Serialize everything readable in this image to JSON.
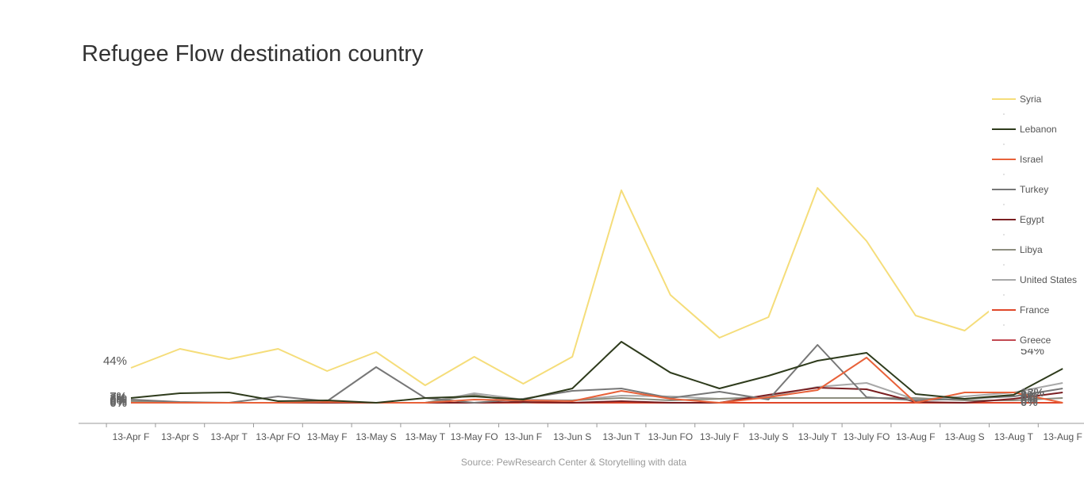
{
  "chart_data": {
    "type": "line",
    "title": "Refugee Flow destination country",
    "source": "Source: PewResearch Center & Storytelling with data",
    "categories": [
      "13-Apr F",
      "13-Apr S",
      "13-Apr T",
      "13-Apr FO",
      "13-May F",
      "13-May S",
      "13-May T",
      "13-May FO",
      "13-Jun F",
      "13-Jun S",
      "13-Jun T",
      "13-Jun FO",
      "13-July F",
      "13-July S",
      "13-July T",
      "13-July FO",
      "13-Aug F",
      "13-Aug S",
      "13-Aug T",
      "13-Aug F"
    ],
    "ylim": [
      0,
      330
    ],
    "grid": false,
    "legend_position": "right",
    "series": [
      {
        "name": "Syria",
        "color": "#F5DD7A",
        "values": [
          44,
          68,
          55,
          68,
          40,
          64,
          22,
          58,
          24,
          58,
          268,
          136,
          82,
          108,
          271,
          204,
          110,
          91,
          140,
          185
        ]
      },
      {
        "name": "Lebanon",
        "color": "#2E3B1C",
        "values": [
          6,
          12,
          13,
          2,
          3,
          0,
          6,
          8,
          4,
          18,
          77,
          38,
          18,
          34,
          53,
          63,
          11,
          5,
          10,
          43
        ]
      },
      {
        "name": "Israel",
        "color": "#E8623A",
        "values": [
          0,
          0,
          0,
          0,
          1,
          0,
          0,
          4,
          3,
          2,
          15,
          5,
          0,
          7,
          16,
          57,
          0,
          13,
          13,
          0
        ]
      },
      {
        "name": "Turkey",
        "color": "#777777",
        "values": [
          4,
          1,
          0,
          8,
          2,
          45,
          6,
          0,
          5,
          15,
          18,
          6,
          14,
          4,
          73,
          7,
          3,
          5,
          8,
          18
        ]
      },
      {
        "name": "Egypt",
        "color": "#7A1F22",
        "values": [
          0,
          0,
          0,
          0,
          0,
          0,
          0,
          0,
          1,
          0,
          2,
          0,
          0,
          10,
          19,
          17,
          1,
          0,
          5,
          13
        ]
      },
      {
        "name": "Libya",
        "color": "#8E8E80",
        "values": [
          2,
          0,
          0,
          0,
          0,
          0,
          0,
          10,
          0,
          3,
          6,
          3,
          5,
          6,
          6,
          6,
          6,
          3,
          3,
          6
        ]
      },
      {
        "name": "United States",
        "color": "#A8A8A8",
        "values": [
          0,
          0,
          0,
          0,
          0,
          0,
          0,
          12,
          4,
          3,
          9,
          8,
          5,
          8,
          20,
          25,
          4,
          8,
          13,
          25
        ]
      },
      {
        "name": "France",
        "color": "#E0472A",
        "values": [
          0,
          0,
          0,
          0,
          0,
          0,
          0,
          0,
          0,
          0,
          0,
          0,
          0,
          0,
          0,
          0,
          0,
          0,
          0,
          0
        ]
      },
      {
        "name": "Greece",
        "color": "#C24A52",
        "values": [
          0,
          0,
          0,
          0,
          0,
          0,
          0,
          0,
          0,
          0,
          0,
          0,
          0,
          0,
          0,
          0,
          0,
          0,
          0,
          0
        ]
      }
    ],
    "annotations": {
      "left_label": "44%",
      "right_label": "54%",
      "left_small": [
        "7%",
        "3%",
        "0%",
        "0%",
        "0%"
      ],
      "right_small": [
        "13%",
        "8%",
        "0%",
        "0%",
        "0%"
      ]
    }
  }
}
